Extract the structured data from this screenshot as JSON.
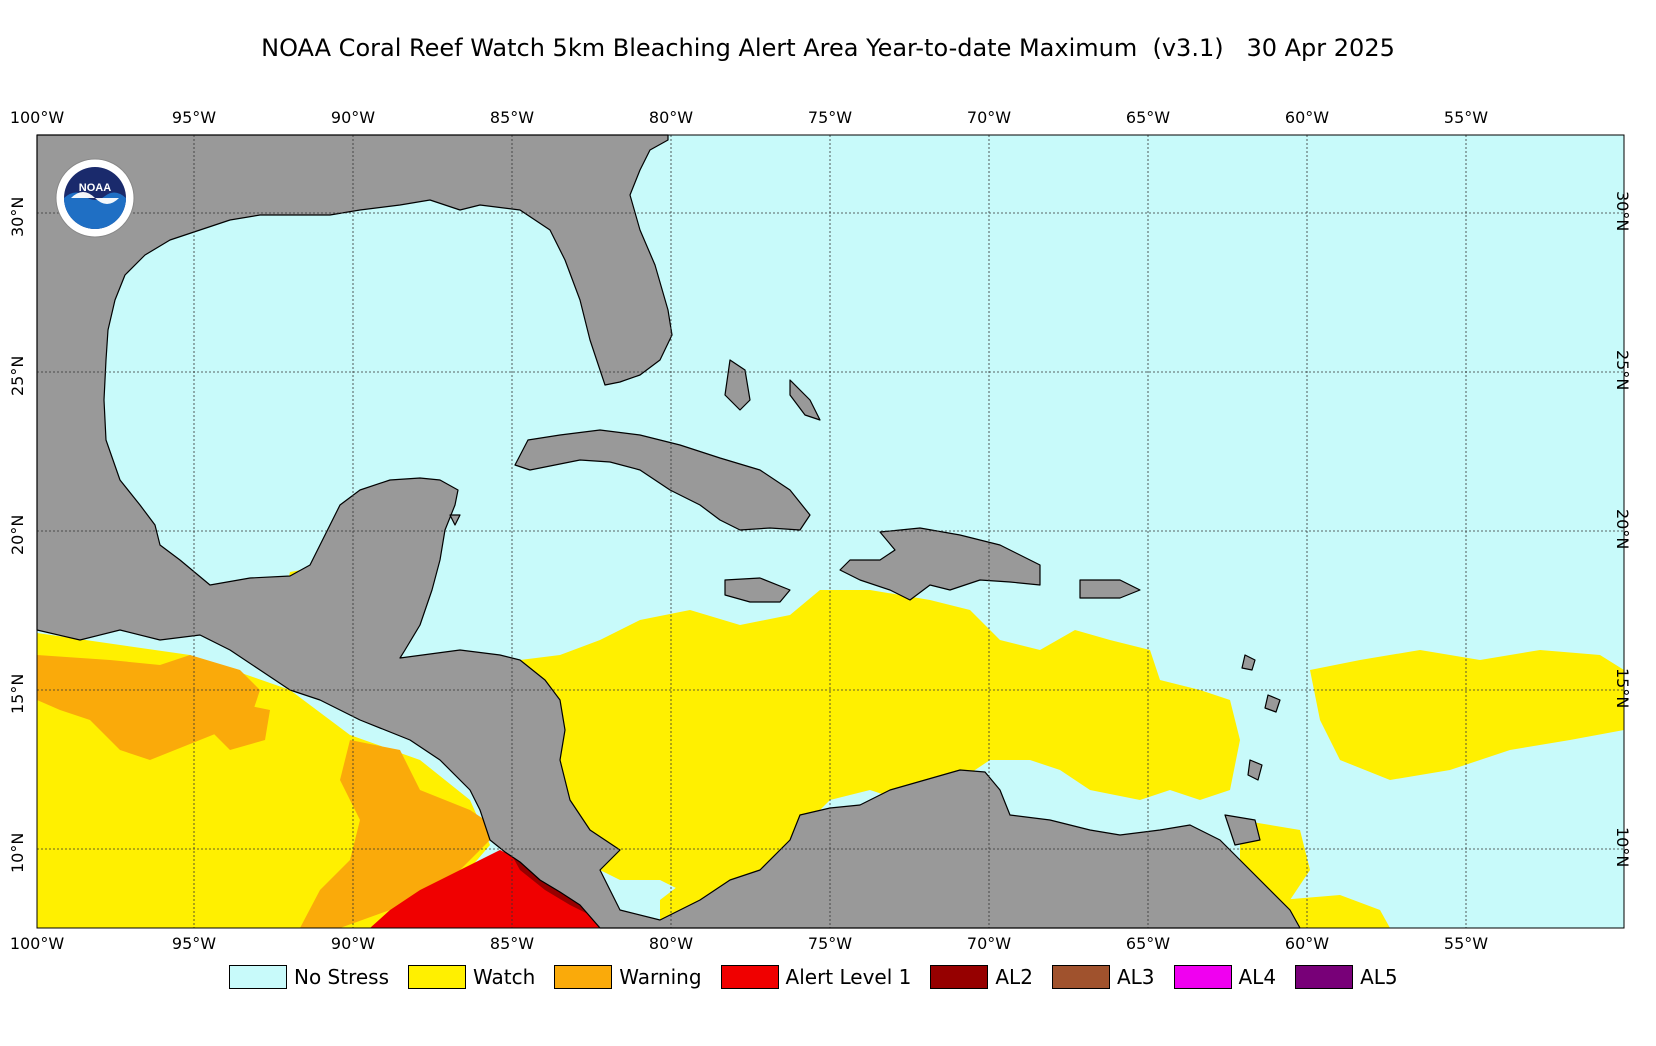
{
  "title": "NOAA Coral Reef Watch 5km Bleaching Alert Area Year-to-date Maximum  (v3.1)   30 Apr 2025",
  "logo_text": "NOAA",
  "map": {
    "lon_labels": [
      "100°W",
      "95°W",
      "90°W",
      "85°W",
      "80°W",
      "75°W",
      "70°W",
      "65°W",
      "60°W",
      "55°W"
    ],
    "lat_labels": [
      "30°N",
      "25°N",
      "20°N",
      "15°N",
      "10°N"
    ],
    "colors": {
      "land": "#999999",
      "no_stress": "#c8fafa",
      "watch": "#fff000",
      "warning": "#faaa0a",
      "alert1": "#f00000",
      "al2": "#960000"
    }
  },
  "legend": [
    {
      "label": "No Stress",
      "color": "#c8fafa"
    },
    {
      "label": "Watch",
      "color": "#fff000"
    },
    {
      "label": "Warning",
      "color": "#faaa0a"
    },
    {
      "label": "Alert Level 1",
      "color": "#f00000"
    },
    {
      "label": "AL2",
      "color": "#960000"
    },
    {
      "label": "AL3",
      "color": "#a0522d"
    },
    {
      "label": "AL4",
      "color": "#f000f0"
    },
    {
      "label": "AL5",
      "color": "#780078"
    }
  ]
}
